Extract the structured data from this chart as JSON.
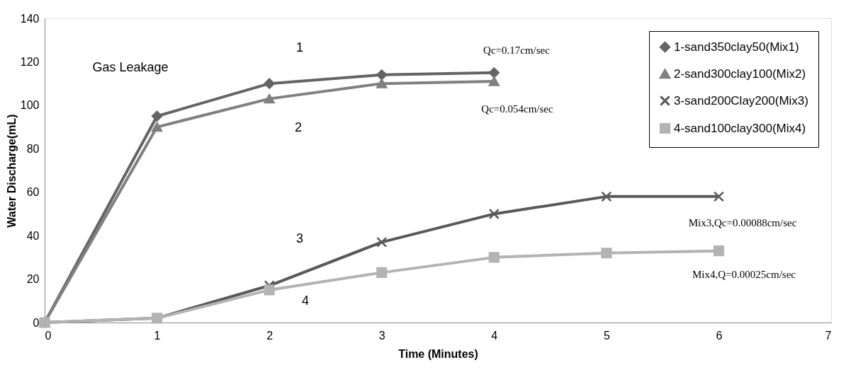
{
  "chart_data": {
    "type": "line",
    "xlabel": "Time (Minutes)",
    "ylabel": "Water Discharge(mL)",
    "xlim": [
      0,
      7
    ],
    "xticks": [
      0,
      1,
      2,
      3,
      4,
      5,
      6,
      7
    ],
    "ylim": [
      0,
      140
    ],
    "yticks": [
      0,
      20,
      40,
      60,
      80,
      100,
      120,
      140
    ],
    "grid": false,
    "legend": "top right",
    "line_style": "solid",
    "series": [
      {
        "name": "1-sand350clay50(Mix1)",
        "color": "#646464",
        "marker": "diamond",
        "x": [
          0,
          1,
          2,
          3,
          4
        ],
        "values": [
          0,
          95,
          110,
          114,
          115
        ]
      },
      {
        "name": "2-sand300clay100(Mix2)",
        "color": "#808080",
        "marker": "triangle",
        "x": [
          0,
          1,
          2,
          3,
          4
        ],
        "values": [
          0,
          90,
          103,
          110,
          111
        ]
      },
      {
        "name": "3-sand200Clay200(Mix3)",
        "color": "#595959",
        "marker": "cross",
        "x": [
          0,
          1,
          2,
          3,
          4,
          5,
          6
        ],
        "values": [
          0,
          2,
          17,
          37,
          50,
          58,
          58
        ]
      },
      {
        "name": "4-sand100clay300(Mix4)",
        "color": "#b3b3b3",
        "marker": "square",
        "x": [
          0,
          1,
          2,
          3,
          4,
          5,
          6
        ],
        "values": [
          0,
          2,
          15,
          23,
          30,
          32,
          33
        ]
      }
    ],
    "annotations": [
      "Gas Leakage",
      "1",
      "2",
      "3",
      "4",
      "Qc=0.17cm/sec",
      "Qc=0.054cm/sec",
      "Mix3,Qc=0.00088cm/sec",
      "Mix4,Q=0.00025cm/sec"
    ]
  }
}
